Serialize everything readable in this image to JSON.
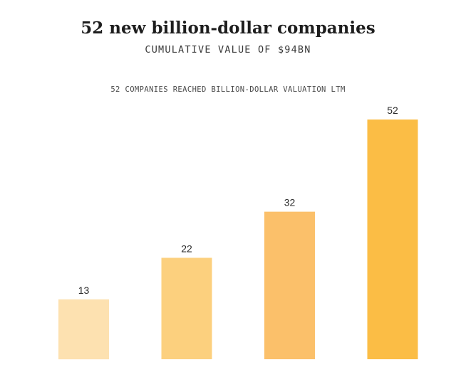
{
  "header": {
    "title": "52 new billion-dollar companies",
    "subtitle": "CUMULATIVE VALUE OF $94BN",
    "caption": "52 COMPANIES REACHED BILLION-DOLLAR VALUATION LTM"
  },
  "chart_data": {
    "type": "bar",
    "title": "52 new billion-dollar companies",
    "subtitle": "CUMULATIVE VALUE OF $94BN",
    "caption": "52 COMPANIES REACHED BILLION-DOLLAR VALUATION LTM",
    "categories": [
      "",
      "",
      "",
      ""
    ],
    "values": [
      13,
      22,
      32,
      52
    ],
    "data_labels": [
      "13",
      "22",
      "32",
      "52"
    ],
    "colors": [
      "#fde1b0",
      "#fcd07e",
      "#fbc06a",
      "#fbbd45"
    ],
    "xlabel": "",
    "ylabel": "",
    "ylim": [
      0,
      52
    ],
    "grid": false,
    "legend": "none"
  }
}
